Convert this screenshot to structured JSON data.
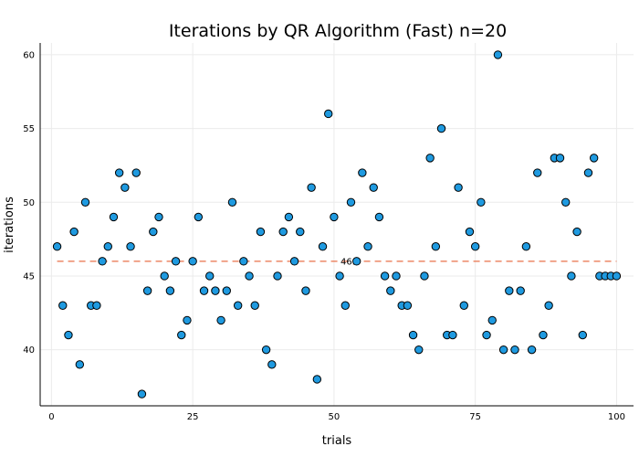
{
  "chart_data": {
    "type": "scatter",
    "title": "Iterations by QR Algorithm (Fast)  n=20",
    "xlabel": "trials",
    "ylabel": "iterations",
    "xlim": [
      -2,
      103
    ],
    "ylim": [
      36.2,
      60.8
    ],
    "x_ticks": [
      0,
      25,
      50,
      75,
      100
    ],
    "y_ticks": [
      40,
      45,
      50,
      55,
      60
    ],
    "grid": true,
    "legend": "none",
    "marker_color": "#1f9ae0",
    "marker_edge_color": "#000000",
    "mean_line_color": "#e8704a",
    "mean_value": 46.0,
    "mean_label": "46.0",
    "series": [
      {
        "x": [
          1,
          2,
          3,
          4,
          5,
          6,
          7,
          8,
          9,
          10,
          11,
          12,
          13,
          14,
          15,
          16,
          17,
          18,
          19,
          20,
          21,
          22,
          23,
          24,
          25,
          26,
          27,
          28,
          29,
          30,
          31,
          32,
          33,
          34,
          35,
          36,
          37,
          38,
          39,
          40,
          41,
          42,
          43,
          44,
          45,
          46,
          47,
          48,
          49,
          50,
          51,
          52,
          53,
          54,
          55,
          56,
          57,
          58,
          59,
          60,
          61,
          62,
          63,
          64,
          65,
          66,
          67,
          68,
          69,
          70,
          71,
          72,
          73,
          74,
          75,
          76,
          77,
          78,
          79,
          80,
          81,
          82,
          83,
          84,
          85,
          86,
          87,
          88,
          89,
          90,
          91,
          92,
          93,
          94,
          95,
          96,
          97,
          98,
          99,
          100
        ],
        "y": [
          47,
          43,
          41,
          48,
          39,
          50,
          43,
          43,
          46,
          47,
          49,
          52,
          51,
          47,
          52,
          37,
          44,
          48,
          49,
          45,
          44,
          46,
          41,
          42,
          46,
          49,
          44,
          45,
          44,
          42,
          44,
          50,
          43,
          46,
          45,
          43,
          48,
          40,
          39,
          45,
          48,
          49,
          46,
          48,
          44,
          51,
          38,
          47,
          56,
          49,
          45,
          43,
          50,
          46,
          52,
          47,
          51,
          49,
          45,
          44,
          45,
          43,
          43,
          41,
          40,
          45,
          53,
          47,
          55,
          41,
          41,
          51,
          43,
          48,
          47,
          50,
          41,
          42,
          60,
          40,
          44,
          40,
          44,
          47,
          40,
          52,
          41,
          43,
          53,
          53,
          50,
          45,
          48,
          41,
          52,
          53,
          45,
          45,
          45,
          45
        ]
      }
    ]
  }
}
